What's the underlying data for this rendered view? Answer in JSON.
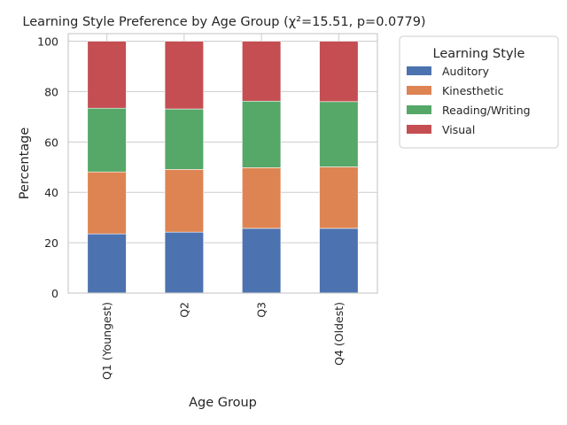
{
  "chart_data": {
    "type": "bar",
    "stacked": true,
    "title": "Learning Style Preference by Age Group (χ²=15.51, p=0.0779)",
    "xlabel": "Age Group",
    "ylabel": "Percentage",
    "ylim": [
      0,
      103
    ],
    "yticks": [
      0,
      20,
      40,
      60,
      80,
      100
    ],
    "grid": true,
    "categories": [
      "Q1 (Youngest)",
      "Q2",
      "Q3",
      "Q4 (Oldest)"
    ],
    "series": [
      {
        "name": "Auditory",
        "color": "#4c72b0",
        "values": [
          23.5,
          24.2,
          25.7,
          25.7
        ]
      },
      {
        "name": "Kinesthetic",
        "color": "#dd8452",
        "values": [
          24.6,
          24.9,
          24.1,
          24.4
        ]
      },
      {
        "name": "Reading/Writing",
        "color": "#55a868",
        "values": [
          25.3,
          24.0,
          26.4,
          25.9
        ]
      },
      {
        "name": "Visual",
        "color": "#c44e52",
        "values": [
          26.6,
          26.9,
          23.8,
          24.0
        ]
      }
    ],
    "legend": {
      "title": "Learning Style",
      "placement": "outside-right-top"
    }
  }
}
